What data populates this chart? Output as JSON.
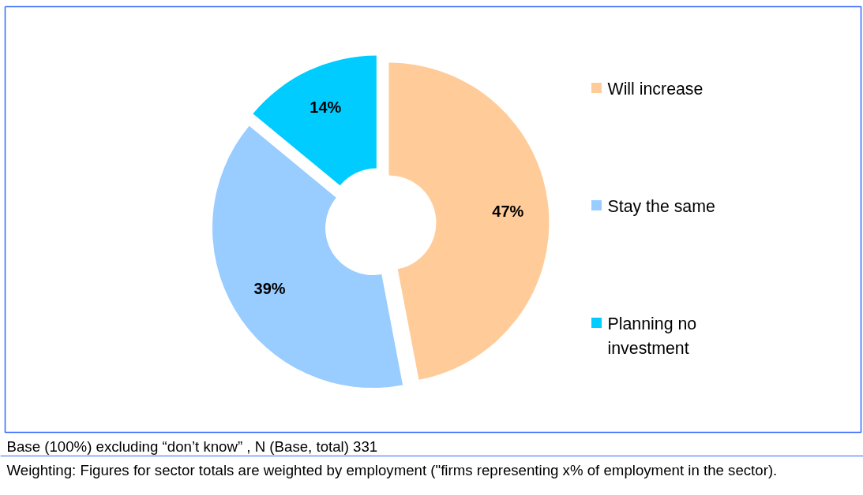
{
  "chart_data": {
    "type": "donut",
    "categories": [
      "Will increase",
      "Stay the same",
      "Planning no investment"
    ],
    "values": [
      47,
      39,
      14
    ],
    "colors": [
      "#ffcc99",
      "#99ccff",
      "#00ccff"
    ],
    "value_labels": [
      "47%",
      "39%",
      "14%"
    ],
    "legend": "right",
    "annotations": [
      "Base (100%) excluding “don’t know” , N (Base, total) 331",
      "Weighting: Figures for sector totals are weighted by employment (\"firms representing x% of employment in the sector)."
    ]
  }
}
